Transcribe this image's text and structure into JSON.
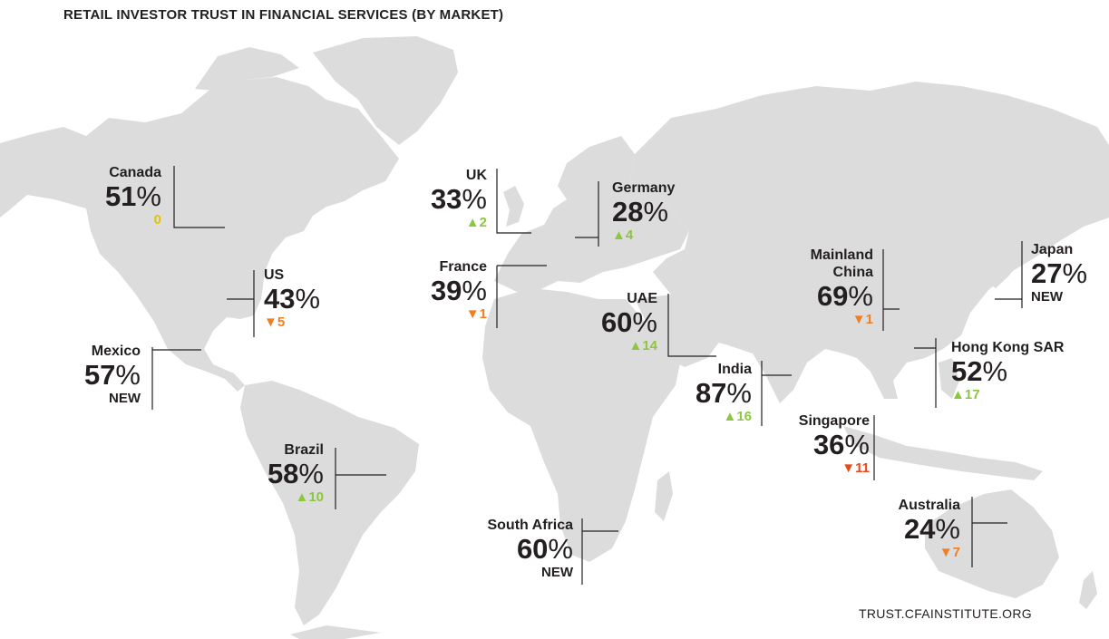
{
  "title": "RETAIL INVESTOR TRUST IN FINANCIAL SERVICES (BY MARKET)",
  "source": "TRUST.CFAINSTITUTE.ORG",
  "colors": {
    "land": "#dcdcdc",
    "up": "#8dc63f",
    "down": "#f07f22",
    "flat": "#e6c300",
    "text": "#231f20"
  },
  "markets": [
    {
      "id": "canada",
      "name": "Canada",
      "value": "51",
      "change": "0",
      "direction": "flat"
    },
    {
      "id": "us",
      "name": "US",
      "value": "43",
      "change": "5",
      "direction": "down"
    },
    {
      "id": "mexico",
      "name": "Mexico",
      "value": "57",
      "change": "NEW",
      "direction": "new"
    },
    {
      "id": "brazil",
      "name": "Brazil",
      "value": "58",
      "change": "10",
      "direction": "up"
    },
    {
      "id": "uk",
      "name": "UK",
      "value": "33",
      "change": "2",
      "direction": "up"
    },
    {
      "id": "france",
      "name": "France",
      "value": "39",
      "change": "1",
      "direction": "down"
    },
    {
      "id": "germany",
      "name": "Germany",
      "value": "28",
      "change": "4",
      "direction": "up"
    },
    {
      "id": "uae",
      "name": "UAE",
      "value": "60",
      "change": "14",
      "direction": "up"
    },
    {
      "id": "south-africa",
      "name": "South Africa",
      "value": "60",
      "change": "NEW",
      "direction": "new"
    },
    {
      "id": "india",
      "name": "India",
      "value": "87",
      "change": "16",
      "direction": "up"
    },
    {
      "id": "mainland-china",
      "name": "Mainland\nChina",
      "value": "69",
      "change": "1",
      "direction": "down"
    },
    {
      "id": "japan",
      "name": "Japan",
      "value": "27",
      "change": "NEW",
      "direction": "new"
    },
    {
      "id": "hong-kong",
      "name": "Hong Kong SAR",
      "value": "52",
      "change": "17",
      "direction": "up"
    },
    {
      "id": "singapore",
      "name": "Singapore",
      "value": "36",
      "change": "11",
      "direction": "down"
    },
    {
      "id": "australia",
      "name": "Australia",
      "value": "24",
      "change": "7",
      "direction": "down"
    }
  ]
}
